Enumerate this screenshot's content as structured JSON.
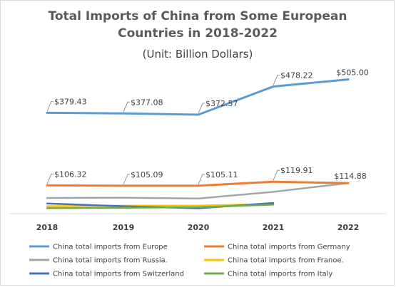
{
  "chart_data": {
    "type": "line",
    "title_line1": "Total Imports of China from Some European",
    "title_line2": "Countries in 2018-2022",
    "subtitle": "(Unit: Billion Dollars)",
    "categories": [
      "2018",
      "2019",
      "2020",
      "2021",
      "2022"
    ],
    "ylim": [
      0,
      560
    ],
    "grid": false,
    "legend_position": "bottom",
    "series": [
      {
        "name": "China total imports from Europe",
        "color": "#5b9bd5",
        "values": [
          379.43,
          377.08,
          372.57,
          478.22,
          505.0
        ],
        "labels": [
          "$379.43",
          "$377.08",
          "$372.57",
          "$478.22",
          "$505.00"
        ]
      },
      {
        "name": "China total imports from Germany",
        "color": "#ed7d31",
        "values": [
          106.32,
          105.09,
          105.11,
          119.91,
          114.88
        ],
        "labels": [
          "$106.32",
          "$105.09",
          "$105.11",
          "$119.91",
          "$114.88"
        ]
      },
      {
        "name": "China total imports from Russia.",
        "color": "#a5a5a5",
        "values": [
          59,
          60,
          57,
          82,
          115
        ],
        "labels": []
      },
      {
        "name": "China total imports from Franoe.",
        "color": "#ffc000",
        "values": [
          28,
          30,
          30,
          36,
          null
        ],
        "labels": []
      },
      {
        "name": "China total imports from Switzerland",
        "color": "#4472c4",
        "values": [
          38,
          28,
          20,
          40,
          null
        ],
        "labels": []
      },
      {
        "name": "China total imports from Italy",
        "color": "#70ad47",
        "values": [
          21,
          22,
          24,
          34,
          null
        ],
        "labels": []
      }
    ]
  }
}
